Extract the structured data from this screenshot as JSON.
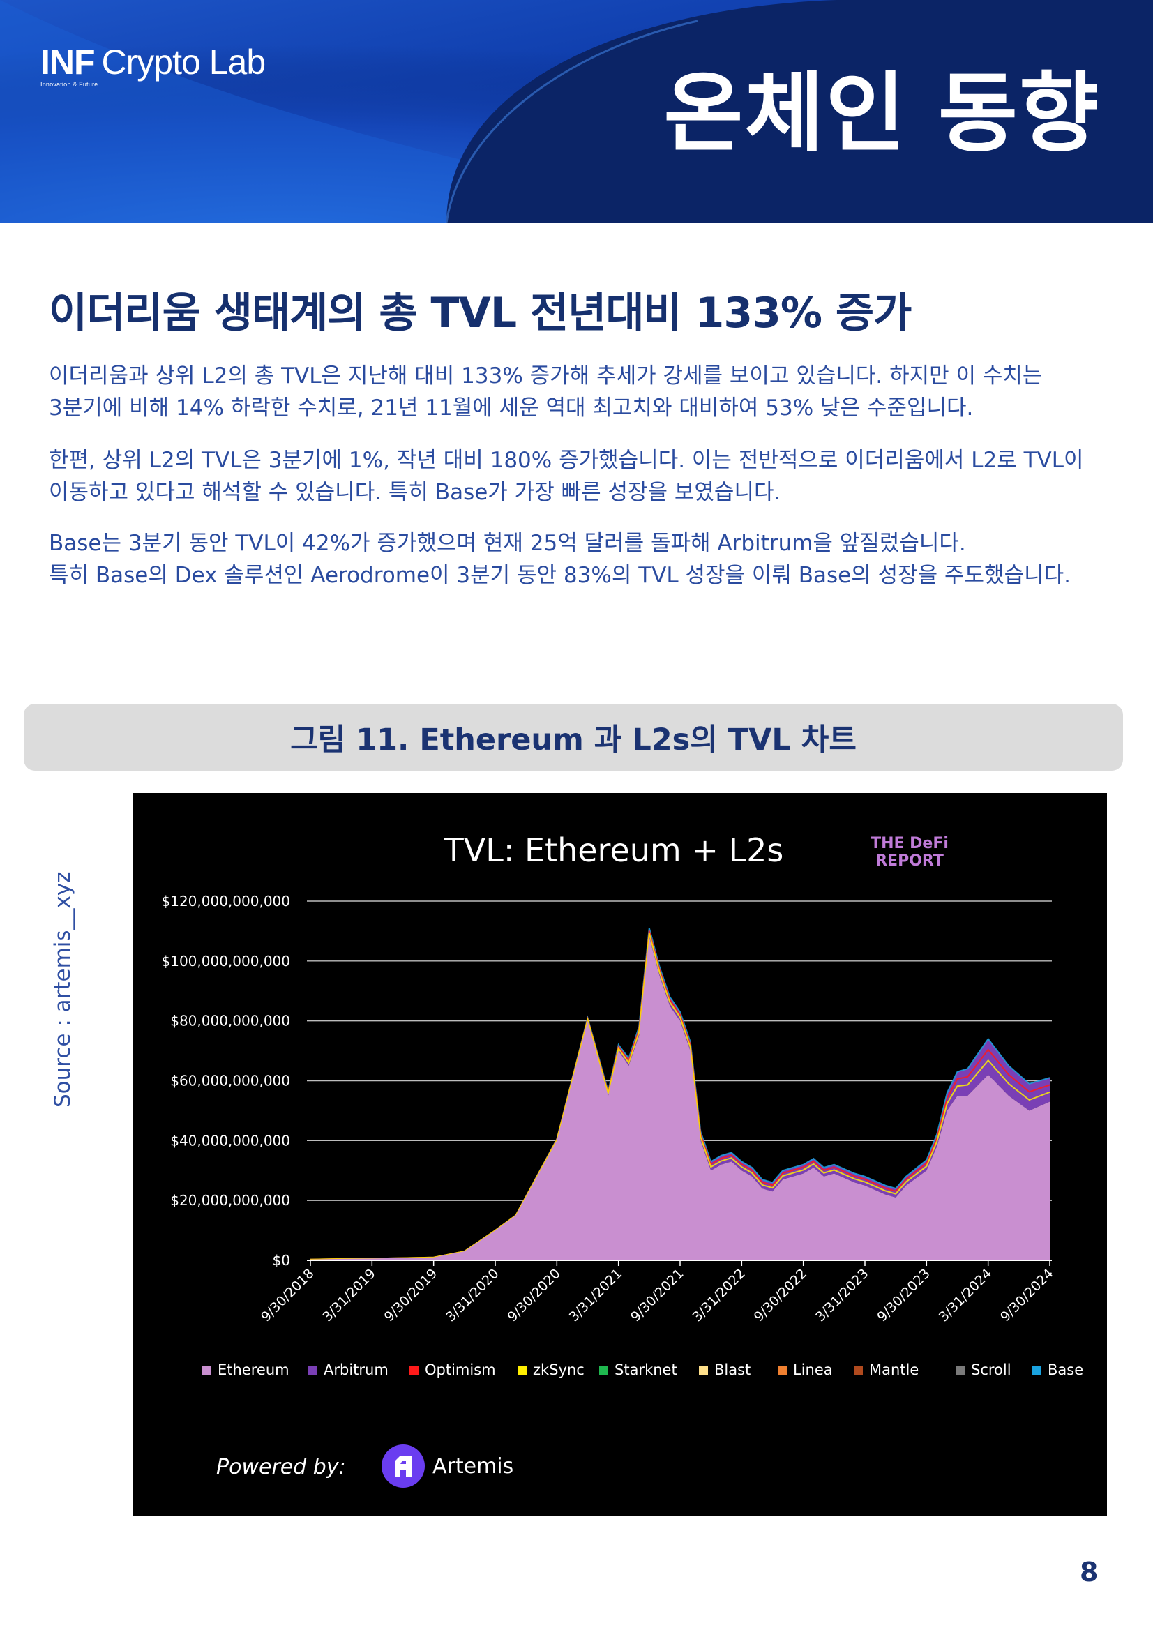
{
  "header": {
    "logo_main": "INF",
    "logo_rest": "Crypto Lab",
    "logo_sub": "Innovation & Future",
    "title": "온체인 동향"
  },
  "headline": "이더리움 생태계의 총 TVL 전년대비 133% 증가",
  "paragraphs": [
    [
      "이더리움과 상위 L2의 총 TVL은 지난해 대비 133% 증가해 추세가 강세를 보이고 있습니다. 하지만 이 수치는",
      "3분기에 비해 14% 하락한 수치로, 21년 11월에 세운 역대 최고치와 대비하여 53% 낮은 수준입니다."
    ],
    [
      "한편, 상위 L2의 TVL은 3분기에 1%, 작년 대비 180% 증가했습니다. 이는 전반적으로 이더리움에서 L2로 TVL이",
      "이동하고 있다고 해석할 수 있습니다. 특히 Base가 가장 빠른 성장을 보였습니다."
    ],
    [
      "Base는 3분기 동안 TVL이 42%가 증가했으며 현재 25억 달러를 돌파해 Arbitrum을 앞질렀습니다.",
      "특히 Base의 Dex 솔루션인 Aerodrome이 3분기 동안 83%의 TVL 성장을 이뤄 Base의 성장을 주도했습니다."
    ]
  ],
  "figure_caption": "그림 11. Ethereum 과 L2s의 TVL 차트",
  "source_label": "Source : artemis__xyz",
  "page_number": "8",
  "chart_data": {
    "type": "area",
    "title": "TVL: Ethereum + L2s",
    "badge_line1": "THE DeFi",
    "badge_line2": "REPORT",
    "powered_by": "Powered by:",
    "powered_brand": "Artemis",
    "ylim": [
      0,
      120000000000
    ],
    "yticks": [
      "$0",
      "$20,000,000,000",
      "$40,000,000,000",
      "$60,000,000,000",
      "$80,000,000,000",
      "$100,000,000,000",
      "$120,000,000,000"
    ],
    "ytick_values": [
      0,
      20000000000,
      40000000000,
      60000000000,
      80000000000,
      100000000000,
      120000000000
    ],
    "xticks": [
      "9/30/2018",
      "3/31/2019",
      "9/30/2019",
      "3/31/2020",
      "9/30/2020",
      "3/31/2021",
      "9/30/2021",
      "3/31/2022",
      "9/30/2022",
      "3/31/2023",
      "9/30/2023",
      "3/31/2024",
      "9/30/2024"
    ],
    "legend": [
      {
        "name": "Ethereum",
        "color": "#c98fd0"
      },
      {
        "name": "Arbitrum",
        "color": "#7a3fb5"
      },
      {
        "name": "Optimism",
        "color": "#ff1a1a"
      },
      {
        "name": "zkSync",
        "color": "#ffee00"
      },
      {
        "name": "Starknet",
        "color": "#1fb84f"
      },
      {
        "name": "Blast",
        "color": "#ffe08a"
      },
      {
        "name": "Linea",
        "color": "#f08030"
      },
      {
        "name": "Mantle",
        "color": "#b04a1e"
      },
      {
        "name": "Scroll",
        "color": "#7a7a7a"
      },
      {
        "name": "Base",
        "color": "#1aa3e0"
      }
    ],
    "x": [
      0,
      3,
      6,
      9,
      12,
      15,
      18,
      20,
      24,
      27,
      29,
      30,
      31,
      32,
      33,
      34,
      35,
      36,
      37,
      38,
      39,
      40,
      41,
      42,
      43,
      44,
      45,
      46,
      48,
      49,
      50,
      51,
      53,
      54,
      56,
      57,
      58,
      60,
      61,
      62,
      63,
      64,
      66,
      68,
      70,
      72
    ],
    "x_label_note": "months since 9/30/2018",
    "series": [
      {
        "name": "Ethereum",
        "values": [
          0.3,
          0.5,
          0.6,
          0.8,
          1.0,
          3.0,
          10.0,
          15.0,
          40.0,
          80.0,
          55.0,
          70.0,
          65.0,
          75.0,
          108.0,
          95.0,
          85.0,
          80.0,
          70.0,
          40.0,
          30.0,
          32.0,
          33.0,
          30.0,
          28.0,
          24.0,
          23.0,
          27.0,
          29.0,
          31.0,
          28.0,
          29.0,
          26.0,
          25.0,
          22.0,
          21.0,
          25.0,
          30.0,
          38.0,
          50.0,
          55.0,
          55.0,
          62.0,
          55.0,
          50.0,
          53.0
        ]
      },
      {
        "name": "L2s",
        "values": [
          0,
          0,
          0,
          0,
          0,
          0,
          0,
          0,
          0.5,
          1.0,
          1.5,
          2.0,
          2.5,
          3.0,
          3.0,
          3.0,
          3.0,
          3.0,
          3.0,
          3.0,
          3.0,
          3.0,
          3.0,
          3.0,
          3.0,
          3.0,
          3.0,
          3.0,
          3.0,
          3.0,
          3.0,
          3.0,
          3.0,
          3.0,
          3.0,
          3.0,
          3.0,
          3.5,
          4.0,
          6.0,
          8.0,
          9.0,
          12.0,
          10.0,
          9.0,
          8.0
        ]
      }
    ]
  }
}
